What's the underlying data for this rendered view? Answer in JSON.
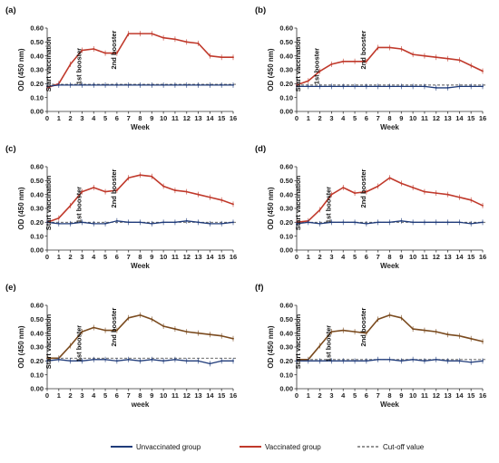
{
  "panels": [
    {
      "label": "(a)",
      "chart_data": {
        "type": "line",
        "xlabel": "Week",
        "ylabel": "OD (450 nm)",
        "xlim": [
          0,
          16
        ],
        "ylim": [
          0,
          0.6
        ],
        "yticks": [
          "0.00",
          "0.10",
          "0.20",
          "0.30",
          "0.40",
          "0.50",
          "0.60"
        ],
        "x": [
          0,
          1,
          2,
          3,
          4,
          5,
          6,
          7,
          8,
          9,
          10,
          11,
          12,
          13,
          14,
          15,
          16
        ],
        "cutoff": 0.195,
        "series": [
          {
            "name": "Vaccinated group",
            "color": "#c0392b",
            "values": [
              0.17,
              0.2,
              0.34,
              0.44,
              0.45,
              0.42,
              0.42,
              0.56,
              0.56,
              0.56,
              0.53,
              0.52,
              0.5,
              0.49,
              0.4,
              0.39,
              0.39
            ]
          },
          {
            "name": "Unvaccinated group",
            "color": "#1f3b7a",
            "values": [
              0.18,
              0.19,
              0.19,
              0.19,
              0.19,
              0.19,
              0.19,
              0.19,
              0.19,
              0.19,
              0.19,
              0.19,
              0.19,
              0.19,
              0.19,
              0.19,
              0.19
            ]
          }
        ],
        "annotations": [
          {
            "text": "Start vaccination",
            "x": 0
          },
          {
            "text": "1st booster",
            "x": 3
          },
          {
            "text": "2nd booster",
            "x": 6
          }
        ]
      }
    },
    {
      "label": "(b)",
      "chart_data": {
        "type": "line",
        "xlabel": "Week",
        "ylabel": "OD (450 nm)",
        "xlim": [
          0,
          16
        ],
        "ylim": [
          0,
          0.6
        ],
        "yticks": [
          "0.00",
          "0.10",
          "0.20",
          "0.30",
          "0.40",
          "0.50",
          "0.60"
        ],
        "x": [
          0,
          1,
          2,
          3,
          4,
          5,
          6,
          7,
          8,
          9,
          10,
          11,
          12,
          13,
          14,
          15,
          16
        ],
        "cutoff": 0.19,
        "series": [
          {
            "name": "Vaccinated group",
            "color": "#c0392b",
            "values": [
              0.19,
              0.22,
              0.29,
              0.34,
              0.36,
              0.36,
              0.36,
              0.46,
              0.46,
              0.45,
              0.41,
              0.4,
              0.39,
              0.38,
              0.37,
              0.33,
              0.29
            ]
          },
          {
            "name": "Unvaccinated group",
            "color": "#1f3b7a",
            "values": [
              0.18,
              0.18,
              0.18,
              0.18,
              0.18,
              0.18,
              0.18,
              0.18,
              0.18,
              0.18,
              0.18,
              0.18,
              0.17,
              0.17,
              0.18,
              0.18,
              0.18
            ]
          }
        ],
        "annotations": [
          {
            "text": "Start vaccination",
            "x": 0
          },
          {
            "text": "1st booster",
            "x": 2
          },
          {
            "text": "2nd booster",
            "x": 6
          }
        ]
      }
    },
    {
      "label": "(c)",
      "chart_data": {
        "type": "line",
        "xlabel": "Week",
        "ylabel": "OD (450 nm)",
        "xlim": [
          0,
          16
        ],
        "ylim": [
          0,
          0.6
        ],
        "yticks": [
          "0.00",
          "0.10",
          "0.20",
          "0.30",
          "0.40",
          "0.50",
          "0.60"
        ],
        "x": [
          0,
          1,
          2,
          3,
          4,
          5,
          6,
          7,
          8,
          9,
          10,
          11,
          12,
          13,
          14,
          15,
          16
        ],
        "cutoff": 0.2,
        "series": [
          {
            "name": "Vaccinated group",
            "color": "#c0392b",
            "values": [
              0.2,
              0.23,
              0.32,
              0.42,
              0.45,
              0.42,
              0.43,
              0.52,
              0.54,
              0.53,
              0.46,
              0.43,
              0.42,
              0.4,
              0.38,
              0.36,
              0.33
            ]
          },
          {
            "name": "Unvaccinated group",
            "color": "#1f3b7a",
            "values": [
              0.2,
              0.19,
              0.19,
              0.2,
              0.19,
              0.19,
              0.21,
              0.2,
              0.2,
              0.19,
              0.2,
              0.2,
              0.21,
              0.2,
              0.19,
              0.19,
              0.2
            ]
          }
        ],
        "annotations": [
          {
            "text": "Start vaccination",
            "x": 0
          },
          {
            "text": "1st booster",
            "x": 3
          },
          {
            "text": "2nd booster",
            "x": 6
          }
        ]
      }
    },
    {
      "label": "(d)",
      "chart_data": {
        "type": "line",
        "xlabel": "Week",
        "ylabel": "OD (450 nm)",
        "xlim": [
          0,
          16
        ],
        "ylim": [
          0,
          0.6
        ],
        "yticks": [
          "0.00",
          "0.10",
          "0.20",
          "0.30",
          "0.40",
          "0.50",
          "0.60"
        ],
        "x": [
          0,
          1,
          2,
          3,
          4,
          5,
          6,
          7,
          8,
          9,
          10,
          11,
          12,
          13,
          14,
          15,
          16
        ],
        "cutoff": 0.2,
        "series": [
          {
            "name": "Vaccinated group",
            "color": "#c0392b",
            "values": [
              0.2,
              0.21,
              0.29,
              0.4,
              0.45,
              0.41,
              0.42,
              0.46,
              0.52,
              0.48,
              0.45,
              0.42,
              0.41,
              0.4,
              0.38,
              0.36,
              0.32
            ]
          },
          {
            "name": "Unvaccinated group",
            "color": "#1f3b7a",
            "values": [
              0.19,
              0.2,
              0.19,
              0.2,
              0.2,
              0.2,
              0.19,
              0.2,
              0.2,
              0.21,
              0.2,
              0.2,
              0.2,
              0.2,
              0.2,
              0.19,
              0.2
            ]
          }
        ],
        "annotations": [
          {
            "text": "Start vaccination",
            "x": 0
          },
          {
            "text": "1st booster",
            "x": 3
          },
          {
            "text": "2nd booster",
            "x": 6
          }
        ]
      }
    },
    {
      "label": "(e)",
      "chart_data": {
        "type": "line",
        "xlabel": "week",
        "ylabel": "OD (450 nm)",
        "xlim": [
          0,
          16
        ],
        "ylim": [
          0,
          0.6
        ],
        "yticks": [
          "0.00",
          "0.10",
          "0.20",
          "0.30",
          "0.40",
          "0.50",
          "0.60"
        ],
        "x": [
          0,
          1,
          2,
          3,
          4,
          5,
          6,
          7,
          8,
          9,
          10,
          11,
          12,
          13,
          14,
          15,
          16
        ],
        "cutoff": 0.22,
        "series": [
          {
            "name": "Vaccinated group",
            "color": "#7a4a1e",
            "values": [
              0.22,
              0.22,
              0.31,
              0.41,
              0.44,
              0.42,
              0.42,
              0.51,
              0.53,
              0.5,
              0.45,
              0.43,
              0.41,
              0.4,
              0.39,
              0.38,
              0.36
            ]
          },
          {
            "name": "Unvaccinated group",
            "color": "#1f3b7a",
            "values": [
              0.2,
              0.21,
              0.2,
              0.2,
              0.21,
              0.21,
              0.2,
              0.21,
              0.2,
              0.21,
              0.2,
              0.21,
              0.2,
              0.2,
              0.18,
              0.2,
              0.2
            ]
          }
        ],
        "annotations": [
          {
            "text": "Start vaccination",
            "x": 0
          },
          {
            "text": "1st booster",
            "x": 3
          },
          {
            "text": "2nd booster",
            "x": 6
          }
        ]
      }
    },
    {
      "label": "(f)",
      "chart_data": {
        "type": "line",
        "xlabel": "Week",
        "ylabel": "OD (450 nm)",
        "xlim": [
          0,
          16
        ],
        "ylim": [
          0,
          0.6
        ],
        "yticks": [
          "0.00",
          "0.10",
          "0.20",
          "0.30",
          "0.40",
          "0.50",
          "0.60"
        ],
        "x": [
          0,
          1,
          2,
          3,
          4,
          5,
          6,
          7,
          8,
          9,
          10,
          11,
          12,
          13,
          14,
          15,
          16
        ],
        "cutoff": 0.21,
        "series": [
          {
            "name": "Vaccinated group",
            "color": "#7a4a1e",
            "values": [
              0.21,
              0.21,
              0.31,
              0.41,
              0.42,
              0.41,
              0.4,
              0.5,
              0.53,
              0.51,
              0.43,
              0.42,
              0.41,
              0.39,
              0.38,
              0.36,
              0.34
            ]
          },
          {
            "name": "Unvaccinated group",
            "color": "#1f3b7a",
            "values": [
              0.2,
              0.2,
              0.2,
              0.2,
              0.2,
              0.2,
              0.2,
              0.21,
              0.21,
              0.2,
              0.21,
              0.2,
              0.21,
              0.2,
              0.2,
              0.19,
              0.2
            ]
          }
        ],
        "annotations": [
          {
            "text": "Start vaccination",
            "x": 0
          },
          {
            "text": "1st booster",
            "x": 3
          },
          {
            "text": "2nd booster",
            "x": 6
          }
        ]
      }
    }
  ],
  "legend": {
    "items": [
      {
        "label": "Unvaccinated group",
        "color": "#1f3b7a",
        "style": "solid"
      },
      {
        "label": "Vaccinated group",
        "color": "#c0392b",
        "style": "solid"
      },
      {
        "label": "Cut-off value",
        "color": "#555555",
        "style": "dashed"
      }
    ]
  }
}
